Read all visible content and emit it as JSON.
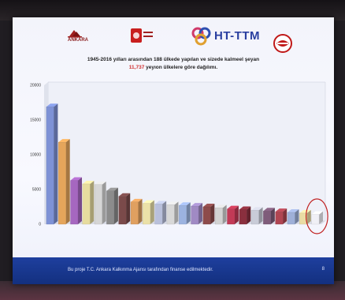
{
  "slide": {
    "logos": [
      {
        "name": "ankara-logo",
        "text": "ANKARA"
      },
      {
        "name": "red-institution-logo",
        "text": ""
      },
      {
        "name": "ht-ttm-logo",
        "text": "HT-TTM"
      },
      {
        "name": "round-red-logo",
        "text": ""
      }
    ],
    "title": {
      "line1": "1945-2016 yılları arasından 188 ülkede yapılan ve sizede",
      "line1_highlight": "",
      "line1_end": "kalmeel şeyan",
      "line2_value": "11,737",
      "line2_rest": "yeyıon ülkelere göre dağılımı."
    },
    "footer_text": "Bu proje T.C. Ankara Kalkınma Ajansı tarafından finanse edilmektedir.",
    "page_number": "8",
    "colors": {
      "slide_bg": "#f5f6fc",
      "footer_blue": "#1a3a96",
      "highlight": "#d03030",
      "circle": "#c02020"
    }
  },
  "chart_data": {
    "type": "bar",
    "style": "3d-bar",
    "ylim": [
      0,
      20000
    ],
    "yticks": [
      0,
      5000,
      10000,
      15000,
      20000
    ],
    "ytick_labels": [
      "0",
      "5000",
      "10000",
      "15000",
      "20000"
    ],
    "grid": false,
    "legend": "none",
    "highlighted_bar_index": 22,
    "bars": [
      {
        "label": "",
        "value": 16900,
        "color": "#7e92d6",
        "data_label": ""
      },
      {
        "label": "",
        "value": 11800,
        "color": "#e5a55b",
        "data_label": ""
      },
      {
        "label": "",
        "value": 6300,
        "color": "#a667c0",
        "data_label": ""
      },
      {
        "label": "",
        "value": 5800,
        "color": "#e7dc9f",
        "data_label": ""
      },
      {
        "label": "",
        "value": 5700,
        "color": "#d6d6d6",
        "data_label": ""
      },
      {
        "label": "",
        "value": 4800,
        "color": "#8c8c8c",
        "data_label": ""
      },
      {
        "label": "",
        "value": 4000,
        "color": "#7a4a4a",
        "data_label": ""
      },
      {
        "label": "",
        "value": 3200,
        "color": "#e0a060",
        "data_label": ""
      },
      {
        "label": "",
        "value": 3000,
        "color": "#ebe1a8",
        "data_label": ""
      },
      {
        "label": "",
        "value": 2900,
        "color": "#b9c0db",
        "data_label": ""
      },
      {
        "label": "",
        "value": 2800,
        "color": "#d8d8d8",
        "data_label": ""
      },
      {
        "label": "",
        "value": 2700,
        "color": "#9cb3e0",
        "data_label": ""
      },
      {
        "label": "",
        "value": 2600,
        "color": "#a08ac4",
        "data_label": ""
      },
      {
        "label": "",
        "value": 2500,
        "color": "#8d4b4b",
        "data_label": ""
      },
      {
        "label": "",
        "value": 2350,
        "color": "#d3d3d3",
        "data_label": ""
      },
      {
        "label": "",
        "value": 2200,
        "color": "#c23a56",
        "data_label": ""
      },
      {
        "label": "",
        "value": 2100,
        "color": "#8a2f3e",
        "data_label": ""
      },
      {
        "label": "",
        "value": 2000,
        "color": "#c9ccd8",
        "data_label": ""
      },
      {
        "label": "",
        "value": 1900,
        "color": "#7f5c7a",
        "data_label": ""
      },
      {
        "label": "",
        "value": 1800,
        "color": "#b04552",
        "data_label": ""
      },
      {
        "label": "",
        "value": 1700,
        "color": "#9fb0d8",
        "data_label": ""
      },
      {
        "label": "",
        "value": 1600,
        "color": "#eadca4",
        "data_label": ""
      },
      {
        "label": "",
        "value": 1400,
        "color": "#f0f0f6",
        "data_label": ""
      }
    ]
  }
}
